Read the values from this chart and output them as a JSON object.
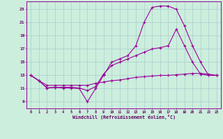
{
  "xlabel": "Windchill (Refroidissement éolien,°C)",
  "background_color": "#cceedd",
  "grid_color": "#aacccc",
  "line_color": "#990099",
  "x_ticks": [
    0,
    1,
    2,
    3,
    4,
    5,
    6,
    7,
    8,
    9,
    10,
    11,
    12,
    13,
    14,
    15,
    16,
    17,
    18,
    19,
    20,
    21,
    22,
    23
  ],
  "y_ticks": [
    9,
    11,
    13,
    15,
    17,
    19,
    21,
    23
  ],
  "ylim": [
    8.0,
    24.2
  ],
  "xlim": [
    -0.5,
    23.5
  ],
  "series1_x": [
    0,
    1,
    2,
    3,
    4,
    5,
    6,
    7,
    8,
    9,
    10,
    11,
    12,
    13,
    14,
    15,
    16,
    17,
    18,
    19,
    20,
    21,
    22,
    23
  ],
  "series1_y": [
    13.0,
    12.2,
    11.1,
    11.2,
    11.1,
    11.1,
    11.0,
    9.0,
    11.0,
    13.0,
    15.0,
    15.5,
    16.0,
    17.5,
    21.0,
    23.3,
    23.5,
    23.5,
    23.0,
    20.5,
    17.5,
    15.0,
    13.0,
    13.0
  ],
  "series2_x": [
    0,
    1,
    2,
    3,
    4,
    5,
    6,
    7,
    8,
    9,
    10,
    11,
    12,
    13,
    14,
    15,
    16,
    17,
    18,
    19,
    20,
    21,
    22,
    23
  ],
  "series2_y": [
    13.0,
    12.2,
    11.1,
    11.2,
    11.2,
    11.2,
    11.1,
    10.7,
    11.3,
    13.2,
    14.5,
    15.0,
    15.5,
    16.0,
    16.5,
    17.0,
    17.2,
    17.5,
    20.0,
    17.5,
    15.0,
    13.2,
    13.0,
    13.0
  ],
  "series3_x": [
    0,
    1,
    2,
    3,
    4,
    5,
    6,
    7,
    8,
    9,
    10,
    11,
    12,
    13,
    14,
    15,
    16,
    17,
    18,
    19,
    20,
    21,
    22,
    23
  ],
  "series3_y": [
    13.0,
    12.2,
    11.5,
    11.5,
    11.5,
    11.5,
    11.5,
    11.5,
    11.8,
    12.0,
    12.2,
    12.3,
    12.5,
    12.7,
    12.8,
    12.9,
    13.0,
    13.0,
    13.1,
    13.2,
    13.3,
    13.3,
    13.2,
    13.0
  ]
}
